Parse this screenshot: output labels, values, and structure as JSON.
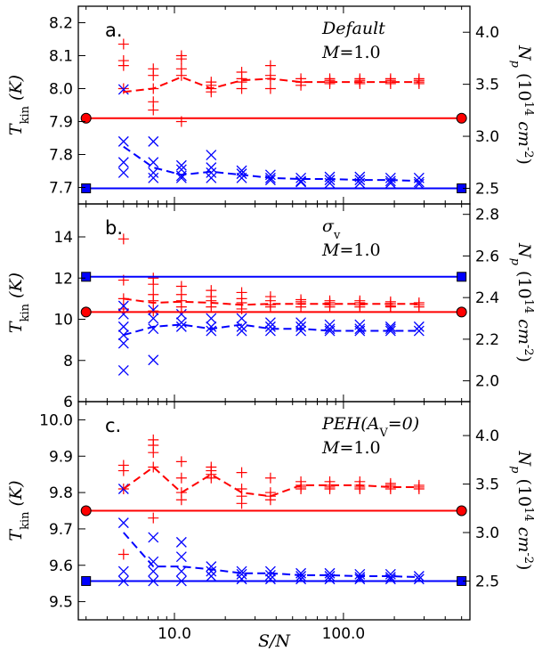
{
  "figure": {
    "x_axis_label": "S/N"
  },
  "chart_data": [
    {
      "type": "scatter",
      "panel_label": "a.",
      "annotation": [
        "Default",
        "M=1.0"
      ],
      "x_scale": "log",
      "xlim": [
        2.7,
        560
      ],
      "x_ticks": [
        10,
        100
      ],
      "x_tick_labels": [
        "10.0",
        "100.0"
      ],
      "left_axis": {
        "label": "T_kin (K)",
        "ylim": [
          7.65,
          8.25
        ],
        "ticks": [
          7.7,
          7.8,
          7.9,
          8.0,
          8.1,
          8.2
        ],
        "tick_labels": [
          "7.7",
          "7.8",
          "7.9",
          "8.0",
          "8.1",
          "8.2"
        ]
      },
      "right_axis": {
        "label": "N_p (10^14 cm^-2)",
        "ylim": [
          2.35,
          4.25
        ],
        "ticks": [
          2.5,
          3.0,
          3.5,
          4.0
        ],
        "tick_labels": [
          "2.5",
          "3.0",
          "3.5",
          "4.0"
        ]
      },
      "series": [
        {
          "name": "T_kin true value",
          "axis": "left",
          "color": "#ff0000",
          "style": "line-endpoints",
          "endpoint_marker": "circle",
          "x": [
            3,
            500
          ],
          "y": 7.91
        },
        {
          "name": "N_p true value",
          "axis": "right",
          "color": "#0000ff",
          "style": "line-endpoints",
          "endpoint_marker": "square",
          "x": [
            3,
            500
          ],
          "y": 2.5
        },
        {
          "name": "T_kin fits",
          "axis": "left",
          "color": "#ff0000",
          "marker": "plus",
          "x": [
            5,
            5,
            5,
            5,
            7.5,
            7.5,
            7.5,
            7.5,
            7.5,
            11,
            11,
            11,
            11,
            11,
            16.5,
            16.5,
            16.5,
            16.5,
            25,
            25,
            25,
            25,
            37,
            37,
            37,
            37,
            56,
            56,
            56,
            56,
            83,
            83,
            83,
            83,
            125,
            125,
            125,
            125,
            190,
            190,
            190,
            190,
            280,
            280,
            280,
            280
          ],
          "y": [
            8.135,
            8.085,
            8.07,
            8.0,
            8.06,
            8.04,
            8.0,
            7.96,
            7.935,
            8.1,
            8.09,
            8.06,
            8.04,
            7.9,
            8.02,
            8.01,
            8.0,
            7.99,
            8.05,
            8.03,
            8.02,
            8.0,
            8.07,
            8.04,
            8.03,
            8.0,
            8.03,
            8.02,
            8.02,
            8.01,
            8.03,
            8.025,
            8.02,
            8.015,
            8.03,
            8.025,
            8.02,
            8.015,
            8.03,
            8.025,
            8.02,
            8.015,
            8.03,
            8.025,
            8.02,
            8.015
          ]
        },
        {
          "name": "N_p fits",
          "axis": "right",
          "color": "#0000ff",
          "marker": "x",
          "x": [
            5,
            5,
            5,
            5,
            7.5,
            7.5,
            7.5,
            7.5,
            11,
            11,
            11,
            11,
            16.5,
            16.5,
            16.5,
            16.5,
            25,
            25,
            25,
            37,
            37,
            37,
            56,
            56,
            56,
            83,
            83,
            83,
            125,
            125,
            125,
            190,
            190,
            190,
            280,
            280,
            280
          ],
          "y": [
            3.45,
            2.95,
            2.75,
            2.65,
            2.95,
            2.75,
            2.65,
            2.6,
            2.72,
            2.68,
            2.62,
            2.6,
            2.82,
            2.7,
            2.65,
            2.6,
            2.67,
            2.64,
            2.6,
            2.63,
            2.6,
            2.58,
            2.6,
            2.57,
            2.56,
            2.61,
            2.58,
            2.55,
            2.61,
            2.58,
            2.55,
            2.6,
            2.57,
            2.55,
            2.6,
            2.56,
            2.54
          ]
        },
        {
          "name": "T_kin mean",
          "axis": "left",
          "color": "#ff0000",
          "style": "dashed",
          "x": [
            5,
            7.5,
            11,
            16.5,
            25,
            37,
            56,
            83,
            125,
            190,
            280
          ],
          "y": [
            7.99,
            8.0,
            8.035,
            8.0,
            8.025,
            8.03,
            8.02,
            8.02,
            8.02,
            8.02,
            8.02
          ]
        },
        {
          "name": "N_p mean",
          "axis": "right",
          "color": "#0000ff",
          "style": "dashed",
          "x": [
            5,
            7.5,
            11,
            16.5,
            25,
            37,
            56,
            83,
            125,
            190,
            280
          ],
          "y": [
            2.9,
            2.7,
            2.63,
            2.66,
            2.63,
            2.6,
            2.59,
            2.59,
            2.58,
            2.58,
            2.57
          ]
        }
      ]
    },
    {
      "type": "scatter",
      "panel_label": "b.",
      "annotation": [
        "σ_v",
        "M=1.0"
      ],
      "x_scale": "log",
      "xlim": [
        2.7,
        560
      ],
      "x_ticks": [
        10,
        100
      ],
      "x_tick_labels": [
        "10.0",
        "100.0"
      ],
      "left_axis": {
        "label": "T_kin (K)",
        "ylim": [
          6,
          15.6
        ],
        "ticks": [
          6,
          8,
          10,
          12,
          14
        ],
        "tick_labels": [
          "6",
          "8",
          "10",
          "12",
          "14"
        ]
      },
      "right_axis": {
        "label": "N_p (10^14 cm^-2)",
        "ylim": [
          1.9,
          2.85
        ],
        "ticks": [
          2.0,
          2.2,
          2.4,
          2.6,
          2.8
        ],
        "tick_labels": [
          "2.0",
          "2.2",
          "2.4",
          "2.6",
          "2.8"
        ]
      },
      "series": [
        {
          "name": "T_kin true value",
          "axis": "left",
          "color": "#ff0000",
          "style": "line-endpoints",
          "endpoint_marker": "circle",
          "x": [
            3,
            500
          ],
          "y": 10.35
        },
        {
          "name": "N_p true value",
          "axis": "right",
          "color": "#0000ff",
          "style": "line-endpoints",
          "endpoint_marker": "square",
          "x": [
            3,
            500
          ],
          "y": 2.5
        },
        {
          "name": "T_kin fits",
          "axis": "left",
          "color": "#ff0000",
          "marker": "plus",
          "x": [
            5,
            5,
            5,
            5,
            7.5,
            7.5,
            7.5,
            7.5,
            7.5,
            11,
            11,
            11,
            11,
            16.5,
            16.5,
            16.5,
            16.5,
            25,
            25,
            25,
            25,
            37,
            37,
            37,
            37,
            56,
            56,
            56,
            56,
            83,
            83,
            83,
            83,
            125,
            125,
            125,
            125,
            190,
            190,
            190,
            190,
            280,
            280,
            280
          ],
          "y": [
            13.9,
            11.9,
            11.0,
            10.5,
            12.0,
            11.7,
            11.2,
            10.9,
            10.4,
            11.6,
            11.2,
            10.9,
            10.6,
            11.4,
            11.1,
            10.9,
            10.6,
            11.3,
            11.0,
            10.8,
            10.5,
            11.1,
            10.9,
            10.7,
            10.6,
            10.95,
            10.85,
            10.75,
            10.6,
            10.9,
            10.8,
            10.7,
            10.6,
            10.9,
            10.8,
            10.7,
            10.6,
            10.85,
            10.75,
            10.65,
            10.6,
            10.8,
            10.7,
            10.6
          ]
        },
        {
          "name": "N_p fits",
          "axis": "right",
          "color": "#0000ff",
          "marker": "x",
          "x": [
            5,
            5,
            5,
            5,
            5,
            5,
            7.5,
            7.5,
            7.5,
            7.5,
            11,
            11,
            11,
            16.5,
            16.5,
            16.5,
            25,
            25,
            25,
            37,
            37,
            37,
            56,
            56,
            56,
            83,
            83,
            83,
            125,
            125,
            125,
            190,
            190,
            190,
            280,
            280
          ],
          "y": [
            2.36,
            2.32,
            2.26,
            2.22,
            2.18,
            2.05,
            2.34,
            2.3,
            2.25,
            2.1,
            2.32,
            2.28,
            2.26,
            2.3,
            2.26,
            2.24,
            2.3,
            2.26,
            2.24,
            2.28,
            2.26,
            2.24,
            2.28,
            2.26,
            2.24,
            2.27,
            2.25,
            2.24,
            2.27,
            2.25,
            2.24,
            2.26,
            2.25,
            2.24,
            2.26,
            2.24
          ]
        },
        {
          "name": "T_kin mean",
          "axis": "left",
          "color": "#ff0000",
          "style": "dashed",
          "x": [
            5,
            7.5,
            11,
            16.5,
            25,
            37,
            56,
            83,
            125,
            190,
            280
          ],
          "y": [
            11.0,
            10.8,
            10.85,
            10.8,
            10.7,
            10.75,
            10.75,
            10.75,
            10.75,
            10.75,
            10.75
          ]
        },
        {
          "name": "N_p mean",
          "axis": "right",
          "color": "#0000ff",
          "style": "dashed",
          "x": [
            5,
            7.5,
            11,
            16.5,
            25,
            37,
            56,
            83,
            125,
            190,
            280
          ],
          "y": [
            2.22,
            2.26,
            2.27,
            2.25,
            2.27,
            2.25,
            2.25,
            2.24,
            2.24,
            2.24,
            2.24
          ]
        }
      ]
    },
    {
      "type": "scatter",
      "panel_label": "c.",
      "annotation": [
        "PEH(A_V=0)",
        "M=1.0"
      ],
      "x_scale": "log",
      "xlim": [
        2.7,
        560
      ],
      "x_ticks": [
        10,
        100
      ],
      "x_tick_labels": [
        "10.0",
        "100.0"
      ],
      "left_axis": {
        "label": "T_kin (K)",
        "ylim": [
          9.45,
          10.05
        ],
        "ticks": [
          9.5,
          9.6,
          9.7,
          9.8,
          9.9,
          10.0
        ],
        "tick_labels": [
          "9.5",
          "9.6",
          "9.7",
          "9.8",
          "9.9",
          "10.0"
        ]
      },
      "right_axis": {
        "label": "N_p (10^14 cm^-2)",
        "ylim": [
          2.1,
          4.35
        ],
        "ticks": [
          2.5,
          3.0,
          3.5,
          4.0
        ],
        "tick_labels": [
          "2.5",
          "3.0",
          "3.5",
          "4.0"
        ]
      },
      "series": [
        {
          "name": "T_kin true value",
          "axis": "left",
          "color": "#ff0000",
          "style": "line-endpoints",
          "endpoint_marker": "circle",
          "x": [
            3,
            500
          ],
          "y": 9.75
        },
        {
          "name": "N_p true value",
          "axis": "right",
          "color": "#0000ff",
          "style": "line-endpoints",
          "endpoint_marker": "square",
          "x": [
            3,
            500
          ],
          "y": 2.5
        },
        {
          "name": "T_kin fits",
          "axis": "left",
          "color": "#ff0000",
          "marker": "plus",
          "x": [
            5,
            5,
            5,
            5,
            7.5,
            7.5,
            7.5,
            7.5,
            7.5,
            11,
            11,
            11,
            11,
            16.5,
            16.5,
            16.5,
            16.5,
            25,
            25,
            25,
            25,
            37,
            37,
            37,
            37,
            56,
            56,
            56,
            56,
            83,
            83,
            83,
            83,
            125,
            125,
            125,
            125,
            190,
            190,
            190,
            190,
            280,
            280,
            280
          ],
          "y": [
            9.875,
            9.86,
            9.81,
            9.63,
            9.945,
            9.93,
            9.91,
            9.87,
            9.73,
            9.885,
            9.84,
            9.8,
            9.78,
            9.87,
            9.86,
            9.85,
            9.84,
            9.855,
            9.81,
            9.79,
            9.77,
            9.84,
            9.8,
            9.79,
            9.78,
            9.83,
            9.82,
            9.815,
            9.81,
            9.83,
            9.82,
            9.815,
            9.81,
            9.83,
            9.82,
            9.815,
            9.81,
            9.825,
            9.82,
            9.815,
            9.81,
            9.82,
            9.815,
            9.81
          ]
        },
        {
          "name": "N_p fits",
          "axis": "right",
          "color": "#0000ff",
          "marker": "x",
          "x": [
            5,
            5,
            5,
            5,
            7.5,
            7.5,
            7.5,
            7.5,
            11,
            11,
            11,
            11,
            16.5,
            16.5,
            16.5,
            25,
            25,
            25,
            37,
            37,
            37,
            56,
            56,
            56,
            83,
            83,
            83,
            125,
            125,
            125,
            190,
            190,
            190,
            280,
            280
          ],
          "y": [
            3.45,
            3.1,
            2.6,
            2.5,
            2.95,
            2.7,
            2.6,
            2.5,
            2.9,
            2.75,
            2.6,
            2.5,
            2.65,
            2.6,
            2.55,
            2.6,
            2.57,
            2.52,
            2.6,
            2.56,
            2.52,
            2.58,
            2.55,
            2.52,
            2.58,
            2.55,
            2.52,
            2.57,
            2.54,
            2.52,
            2.57,
            2.54,
            2.52,
            2.55,
            2.52
          ]
        },
        {
          "name": "T_kin mean",
          "axis": "left",
          "color": "#ff0000",
          "style": "dashed",
          "x": [
            5,
            7.5,
            11,
            16.5,
            25,
            37,
            56,
            83,
            125,
            190,
            280
          ],
          "y": [
            9.81,
            9.87,
            9.8,
            9.85,
            9.8,
            9.79,
            9.82,
            9.82,
            9.82,
            9.815,
            9.815
          ]
        },
        {
          "name": "N_p mean",
          "axis": "right",
          "color": "#0000ff",
          "style": "dashed",
          "x": [
            5,
            7.5,
            11,
            16.5,
            25,
            37,
            56,
            83,
            125,
            190,
            280
          ],
          "y": [
            3.0,
            2.65,
            2.65,
            2.62,
            2.58,
            2.58,
            2.56,
            2.56,
            2.55,
            2.55,
            2.54
          ]
        }
      ]
    }
  ]
}
